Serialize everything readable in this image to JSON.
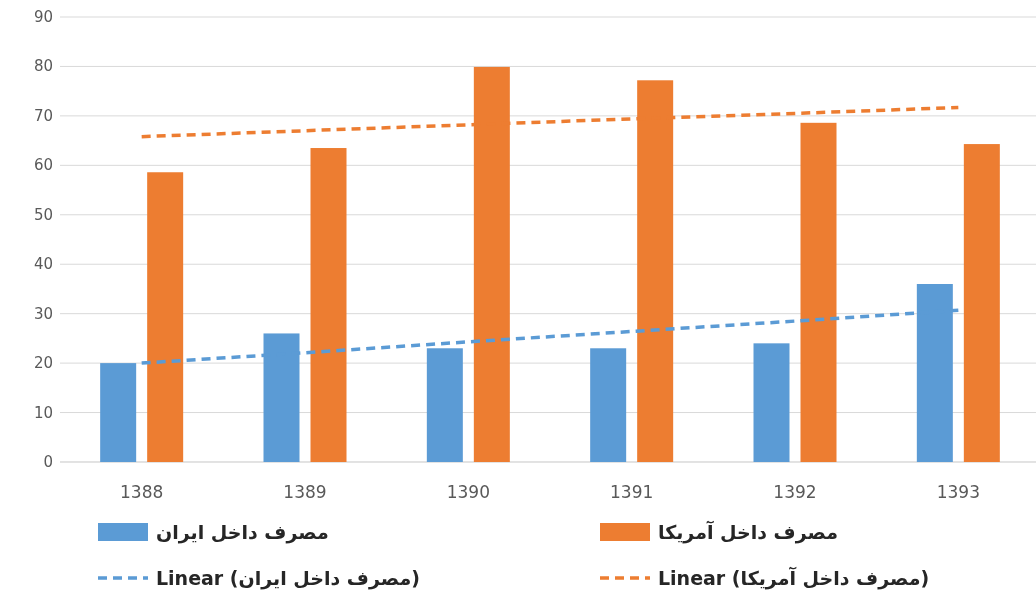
{
  "chart_data": {
    "type": "bar",
    "categories": [
      "1388",
      "1389",
      "1390",
      "1391",
      "1392",
      "1393"
    ],
    "series": [
      {
        "name": "مصرف داخل ایران",
        "color": "#5b9bd5",
        "values": [
          20,
          26,
          23,
          23,
          24,
          36
        ]
      },
      {
        "name": "مصرف داخل آمریکا",
        "color": "#ed7d31",
        "values": [
          58.6,
          63.5,
          79.9,
          77.2,
          68.6,
          64.3
        ]
      },
      {
        "name": "Linear (مصرف داخل ایران)",
        "type": "line",
        "line_style": "dashed",
        "color": "#5b9bd5",
        "values": [
          20,
          22.1,
          24.3,
          26.4,
          28.5,
          30.7
        ]
      },
      {
        "name": "Linear (مصرف داخل آمریکا)",
        "type": "line",
        "line_style": "dashed",
        "color": "#ed7d31",
        "values": [
          65.8,
          67,
          68.2,
          69.4,
          70.5,
          71.7
        ]
      }
    ],
    "ylim": [
      0,
      90
    ],
    "yticks": [
      0,
      10,
      20,
      30,
      40,
      50,
      60,
      70,
      80,
      90
    ],
    "grid": "y",
    "legend": "bottom"
  }
}
